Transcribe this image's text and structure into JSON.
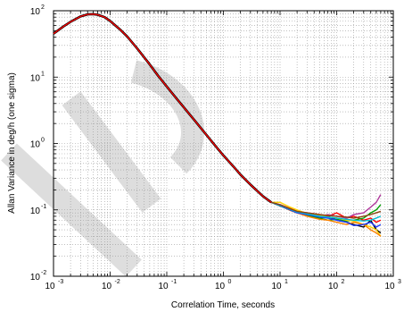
{
  "chart_data": {
    "type": "line",
    "title": "",
    "xlabel": "Correlation Time, seconds",
    "ylabel": "Allan Variance in deg/h (one sigma)",
    "xscale": "log",
    "yscale": "log",
    "xlim": [
      0.001,
      1000
    ],
    "ylim": [
      0.01,
      100
    ],
    "grid": true,
    "legend": "none",
    "x_ticks": [
      {
        "base": "10",
        "exp": "-3"
      },
      {
        "base": "10",
        "exp": "-2"
      },
      {
        "base": "10",
        "exp": "-1"
      },
      {
        "base": "10",
        "exp": "0"
      },
      {
        "base": "10",
        "exp": "1"
      },
      {
        "base": "10",
        "exp": "2"
      },
      {
        "base": "10",
        "exp": "3"
      }
    ],
    "y_ticks": [
      {
        "base": "10",
        "exp": "-2"
      },
      {
        "base": "10",
        "exp": "-1"
      },
      {
        "base": "10",
        "exp": "0"
      },
      {
        "base": "10",
        "exp": "1"
      },
      {
        "base": "10",
        "exp": "2"
      }
    ],
    "common_curve": {
      "x": [
        0.001,
        0.0015,
        0.002,
        0.003,
        0.004,
        0.005,
        0.006,
        0.008,
        0.01,
        0.015,
        0.02,
        0.03,
        0.05,
        0.07,
        0.1,
        0.15,
        0.2,
        0.3,
        0.5,
        0.7,
        1,
        1.5,
        2,
        3,
        5,
        7
      ],
      "y": [
        45,
        58,
        68,
        82,
        88,
        89,
        87,
        80,
        70,
        52,
        41,
        27,
        15.5,
        10.5,
        7.2,
        4.7,
        3.5,
        2.3,
        1.35,
        0.95,
        0.66,
        0.45,
        0.34,
        0.24,
        0.16,
        0.13
      ]
    },
    "series": [
      {
        "color": "#000000",
        "x": [
          7,
          10,
          15,
          20,
          30,
          50,
          70,
          100,
          150,
          200,
          300,
          400,
          500,
          600
        ],
        "y": [
          0.13,
          0.115,
          0.1,
          0.09,
          0.085,
          0.075,
          0.08,
          0.07,
          0.065,
          0.06,
          0.055,
          0.07,
          0.05,
          0.045
        ]
      },
      {
        "color": "#ff0000",
        "x": [
          7,
          10,
          15,
          20,
          30,
          50,
          70,
          100,
          150,
          200,
          300,
          400,
          500,
          600
        ],
        "y": [
          0.13,
          0.12,
          0.105,
          0.095,
          0.09,
          0.085,
          0.08,
          0.09,
          0.075,
          0.08,
          0.07,
          0.075,
          0.065,
          0.07
        ]
      },
      {
        "color": "#b03a9c",
        "x": [
          7,
          10,
          15,
          20,
          30,
          50,
          70,
          100,
          150,
          200,
          300,
          400,
          500,
          600
        ],
        "y": [
          0.13,
          0.118,
          0.1,
          0.095,
          0.088,
          0.08,
          0.085,
          0.08,
          0.075,
          0.085,
          0.09,
          0.11,
          0.13,
          0.17
        ]
      },
      {
        "color": "#00a000",
        "x": [
          7,
          10,
          15,
          20,
          30,
          50,
          70,
          100,
          150,
          200,
          300,
          400,
          500,
          600
        ],
        "y": [
          0.13,
          0.115,
          0.1,
          0.09,
          0.082,
          0.075,
          0.07,
          0.072,
          0.068,
          0.07,
          0.075,
          0.09,
          0.1,
          0.12
        ]
      },
      {
        "color": "#ffd200",
        "x": [
          7,
          10,
          15,
          20,
          30,
          50,
          70,
          100,
          150,
          200,
          300,
          400,
          500,
          600
        ],
        "y": [
          0.13,
          0.13,
          0.11,
          0.1,
          0.088,
          0.082,
          0.078,
          0.075,
          0.07,
          0.068,
          0.06,
          0.055,
          0.05,
          0.04
        ]
      },
      {
        "color": "#ff8000",
        "x": [
          7,
          10,
          15,
          20,
          30,
          50,
          70,
          100,
          150,
          200,
          300,
          400,
          500,
          600
        ],
        "y": [
          0.13,
          0.118,
          0.098,
          0.09,
          0.08,
          0.072,
          0.07,
          0.065,
          0.06,
          0.065,
          0.06,
          0.05,
          0.045,
          0.04
        ]
      },
      {
        "color": "#1f3cff",
        "x": [
          7,
          10,
          15,
          20,
          30,
          50,
          70,
          100,
          150,
          200,
          300,
          400,
          500,
          600
        ],
        "y": [
          0.13,
          0.116,
          0.1,
          0.09,
          0.085,
          0.078,
          0.075,
          0.07,
          0.065,
          0.058,
          0.06,
          0.065,
          0.055,
          0.06
        ]
      },
      {
        "color": "#00bcd4",
        "x": [
          7,
          10,
          15,
          20,
          30,
          50,
          70,
          100,
          150,
          200,
          300,
          400,
          500,
          600
        ],
        "y": [
          0.13,
          0.118,
          0.102,
          0.093,
          0.087,
          0.08,
          0.078,
          0.075,
          0.072,
          0.07,
          0.068,
          0.07,
          0.075,
          0.08
        ]
      },
      {
        "color": "#8b4513",
        "x": [
          7,
          10,
          15,
          20,
          30,
          50,
          70,
          100,
          150,
          200,
          300,
          400,
          500,
          600
        ],
        "y": [
          0.13,
          0.12,
          0.104,
          0.095,
          0.09,
          0.085,
          0.082,
          0.08,
          0.078,
          0.075,
          0.08,
          0.085,
          0.09,
          0.095
        ]
      }
    ]
  }
}
